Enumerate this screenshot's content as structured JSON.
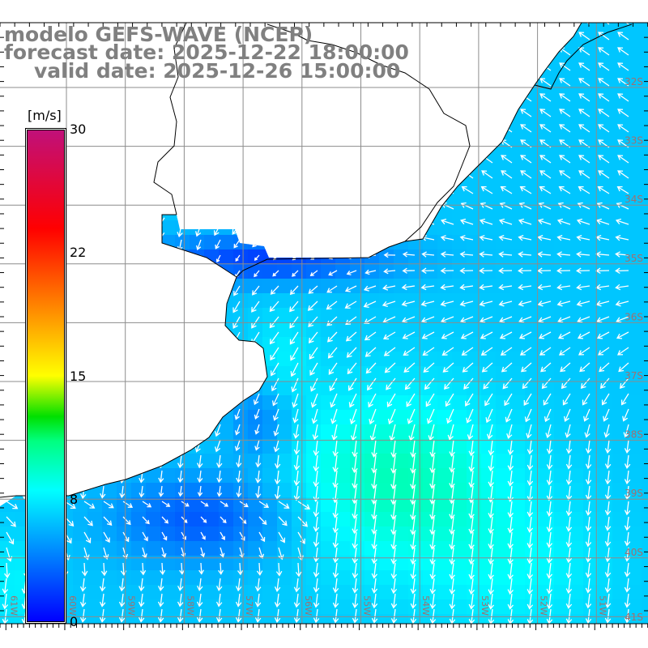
{
  "title": {
    "model": "modelo GEFS-WAVE (NCEP)",
    "forecast_date": "forecast date: 2025-12-22 18:00:00",
    "valid_date": "valid date: 2025-12-26 15:00:00"
  },
  "colorbar": {
    "unit": "[m/s]",
    "ticks": [
      "30",
      "22",
      "15",
      "8",
      "0"
    ],
    "tick_values": [
      30,
      22,
      15,
      8,
      0
    ],
    "stops": [
      {
        "v": 0,
        "c": "#0000ff"
      },
      {
        "v": 4,
        "c": "#0080ff"
      },
      {
        "v": 8,
        "c": "#00ffff"
      },
      {
        "v": 11,
        "c": "#00ff80"
      },
      {
        "v": 12.5,
        "c": "#00e000"
      },
      {
        "v": 15,
        "c": "#ffff00"
      },
      {
        "v": 19,
        "c": "#ff8c00"
      },
      {
        "v": 24,
        "c": "#ff0000"
      },
      {
        "v": 30,
        "c": "#c0107a"
      }
    ]
  },
  "axes": {
    "longitudes": [
      "61W",
      "60W",
      "59W",
      "58W",
      "57W",
      "56W",
      "55W",
      "54W",
      "53W",
      "52W",
      "51W"
    ],
    "latitudes": [
      "32S",
      "33S",
      "34S",
      "35S",
      "36S",
      "37S",
      "38S",
      "39S",
      "40S",
      "41S"
    ]
  },
  "colors": {
    "grid": "#8c8c8c",
    "label": "#a07070",
    "land": "#ffffff",
    "arrow": "#ffffff"
  }
}
